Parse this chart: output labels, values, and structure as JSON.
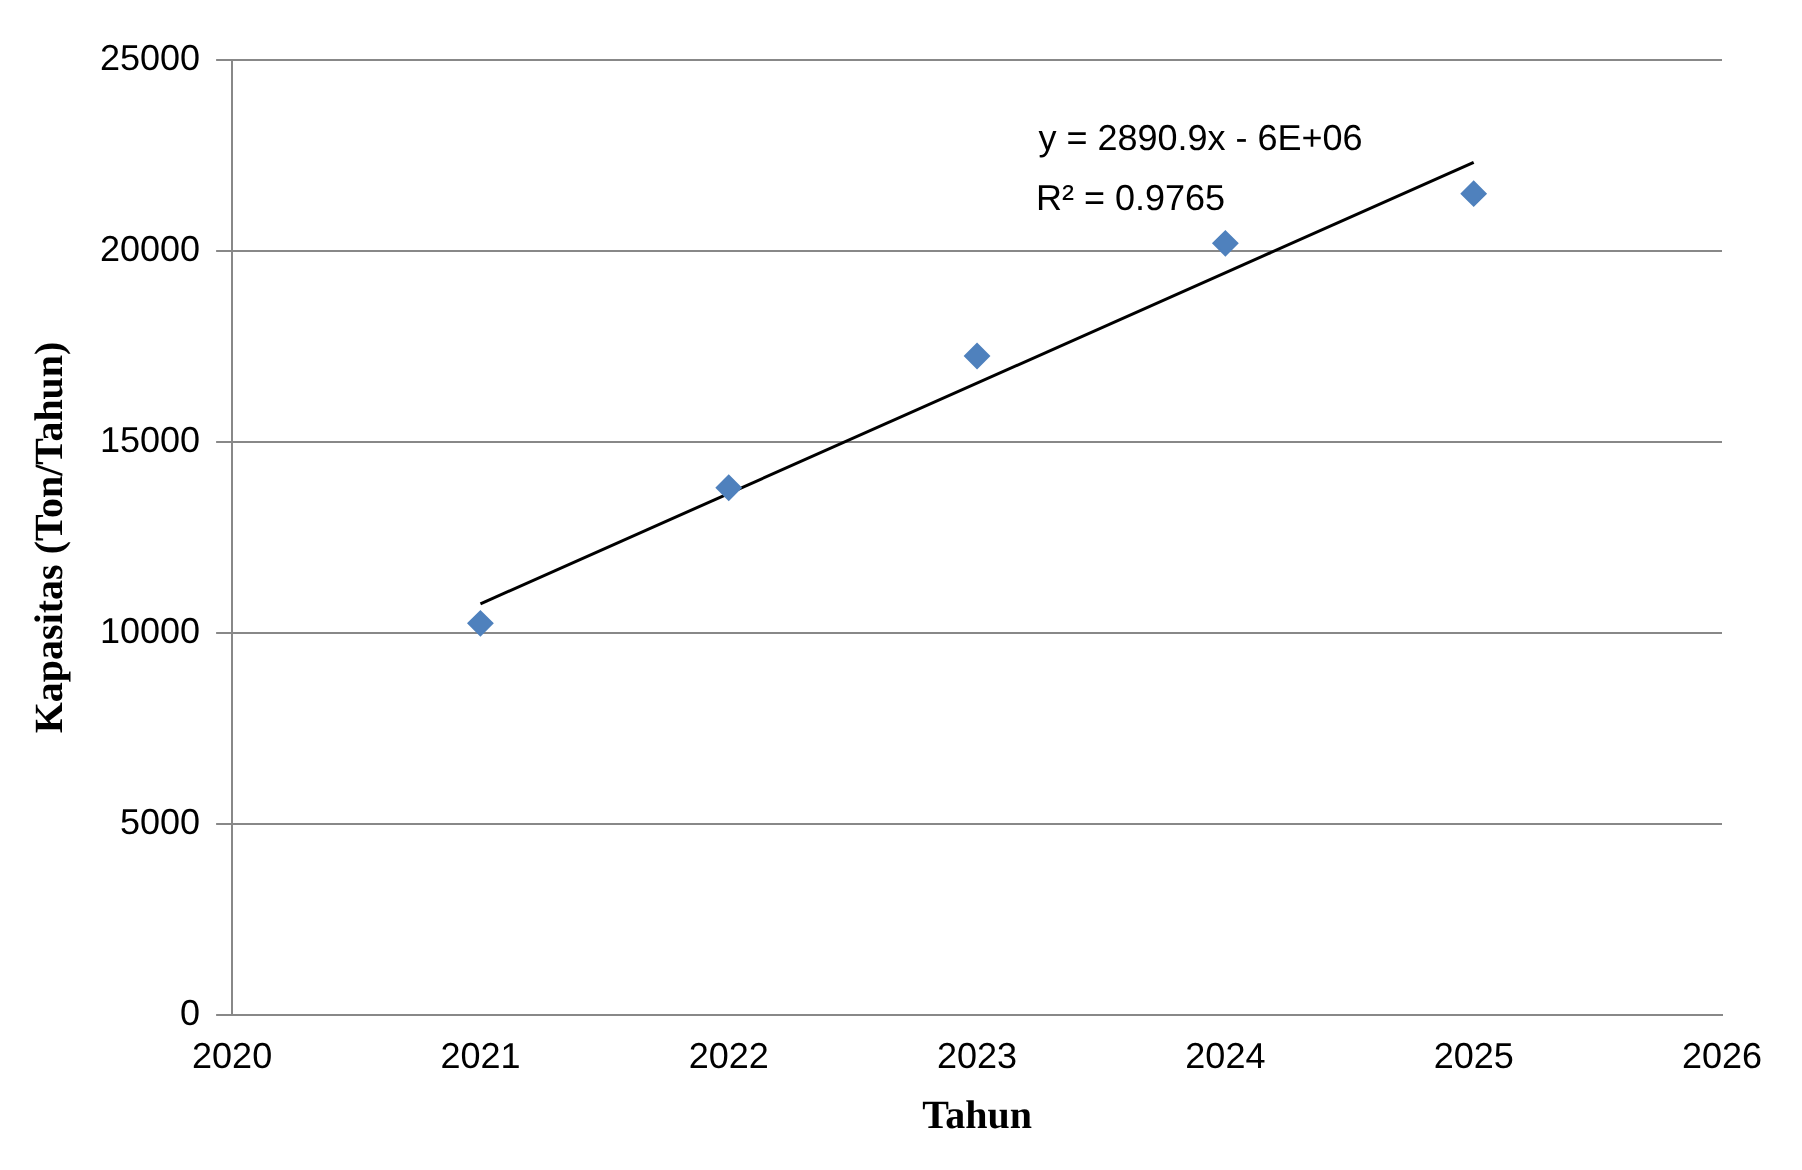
{
  "chart_data": {
    "type": "scatter",
    "xlabel": "Tahun",
    "ylabel": "Kapasitas (Ton/Tahun)",
    "x": [
      2021,
      2022,
      2023,
      2024,
      2025
    ],
    "series": [
      {
        "color": "#4f81bd",
        "marker": "diamond",
        "values": [
          10250,
          13800,
          17250,
          20200,
          21500
        ]
      },
      {
        "type": "line",
        "color": "#000000",
        "marker": "none",
        "x": [
          2021,
          2025
        ],
        "values": [
          10760,
          22320
        ]
      }
    ],
    "xlim": [
      2020,
      2026
    ],
    "xticks": [
      2020,
      2021,
      2022,
      2023,
      2024,
      2025,
      2026
    ],
    "ylim": [
      0,
      25000
    ],
    "yticks": [
      0,
      5000,
      10000,
      15000,
      20000,
      25000
    ],
    "grid": "y",
    "legend": false,
    "annotations": [
      "y = 2890.9x - 6E+06",
      "R² = 0.9765"
    ]
  }
}
